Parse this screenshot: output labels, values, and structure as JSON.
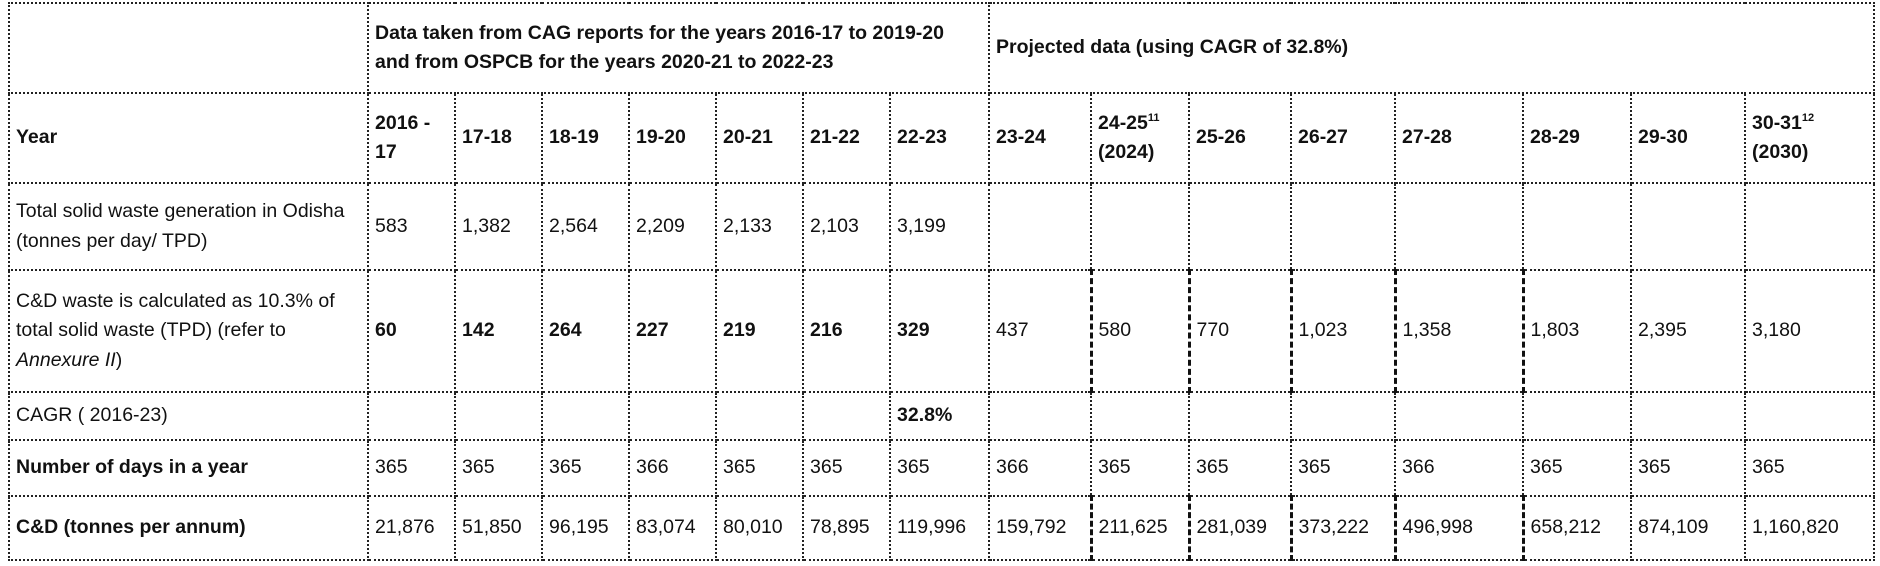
{
  "header": {
    "group_cag": "Data taken from CAG reports for the years 2016-17 to 2019-20 and from OSPCB for the years 2020-21 to 2022-23",
    "group_projected": "Projected data (using CAGR of 32.8%)"
  },
  "year_row": {
    "label": "Year",
    "years": [
      {
        "label": "2016 - 17"
      },
      {
        "label": "17-18"
      },
      {
        "label": "18-19"
      },
      {
        "label": "19-20"
      },
      {
        "label": "20-21"
      },
      {
        "label": "21-22"
      },
      {
        "label": "22-23"
      },
      {
        "label": "23-24"
      },
      {
        "label": "24-25",
        "sup": "11",
        "note": "(2024)"
      },
      {
        "label": "25-26"
      },
      {
        "label": "26-27"
      },
      {
        "label": "27-28"
      },
      {
        "label": "28-29"
      },
      {
        "label": "29-30"
      },
      {
        "label": "30-31",
        "sup": "12",
        "note": "(2030)"
      }
    ]
  },
  "rows": [
    {
      "label": "Total solid waste generation in Odisha (tonnes per day/ TPD)",
      "values": [
        "583",
        "1,382",
        "2,564",
        "2,209",
        "2,133",
        "2,103",
        "3,199",
        "",
        "",
        "",
        "",
        "",
        "",
        "",
        ""
      ]
    },
    {
      "label_parts": [
        "C&D waste is calculated as 10.3% of total solid waste (TPD) (refer to ",
        "Annexure II",
        ")"
      ],
      "values": [
        "60",
        "142",
        "264",
        "227",
        "219",
        "216",
        "329",
        "437",
        "580",
        "770",
        "1,023",
        "1,358",
        "1,803",
        "2,395",
        "3,180"
      ]
    },
    {
      "label": "CAGR ( 2016-23)",
      "values": [
        "",
        "",
        "",
        "",
        "",
        "",
        "32.8%",
        "",
        "",
        "",
        "",
        "",
        "",
        "",
        ""
      ]
    },
    {
      "label": "Number of days in a year",
      "values": [
        "365",
        "365",
        "365",
        "366",
        "365",
        "365",
        "365",
        "366",
        "365",
        "365",
        "365",
        "366",
        "365",
        "365",
        "365"
      ]
    },
    {
      "label": "C&D (tonnes per annum)",
      "values": [
        "21,876",
        "51,850",
        "96,195",
        "83,074",
        "80,010",
        "78,895",
        "119,996",
        "159,792",
        "211,625",
        "281,039",
        "373,222",
        "496,998",
        "658,212",
        "874,109",
        "1,160,820"
      ]
    }
  ]
}
